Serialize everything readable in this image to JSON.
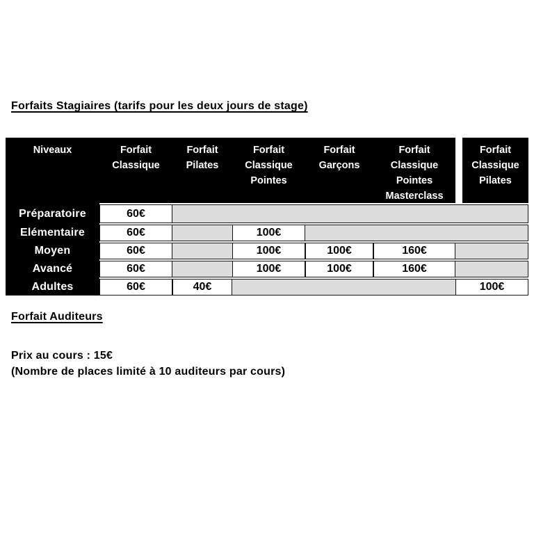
{
  "title": "Forfaits Stagiaires (tarifs pour les deux jours de stage)",
  "table": {
    "columns": [
      "Niveaux",
      "Forfait Classique",
      "Forfait Pilates",
      "Forfait Classique Pointes",
      "Forfait Garçons",
      "Forfait Classique Pointes Masterclass",
      "Forfait Classique Pilates"
    ],
    "rows": [
      {
        "level": "Préparatoire",
        "cells": [
          {
            "value": "60€",
            "state": "open"
          },
          {
            "value": "",
            "state": "na"
          },
          {
            "value": "",
            "state": "na"
          },
          {
            "value": "",
            "state": "na"
          },
          {
            "value": "",
            "state": "na"
          },
          {
            "value": "",
            "state": "na"
          }
        ]
      },
      {
        "level": "Elémentaire",
        "cells": [
          {
            "value": "60€",
            "state": "open"
          },
          {
            "value": "",
            "state": "na"
          },
          {
            "value": "100€",
            "state": "open"
          },
          {
            "value": "",
            "state": "na"
          },
          {
            "value": "",
            "state": "na"
          },
          {
            "value": "",
            "state": "na"
          }
        ]
      },
      {
        "level": "Moyen",
        "cells": [
          {
            "value": "60€",
            "state": "open"
          },
          {
            "value": "",
            "state": "na"
          },
          {
            "value": "100€",
            "state": "open"
          },
          {
            "value": "100€",
            "state": "open"
          },
          {
            "value": "160€",
            "state": "open"
          },
          {
            "value": "",
            "state": "na"
          }
        ]
      },
      {
        "level": "Avancé",
        "cells": [
          {
            "value": "60€",
            "state": "open"
          },
          {
            "value": "",
            "state": "na"
          },
          {
            "value": "100€",
            "state": "open"
          },
          {
            "value": "100€",
            "state": "open"
          },
          {
            "value": "160€",
            "state": "open"
          },
          {
            "value": "",
            "state": "na"
          }
        ]
      },
      {
        "level": "Adultes",
        "cells": [
          {
            "value": "60€",
            "state": "open"
          },
          {
            "value": "40€",
            "state": "open"
          },
          {
            "value": "",
            "state": "na"
          },
          {
            "value": "",
            "state": "na"
          },
          {
            "value": "",
            "state": "na"
          },
          {
            "value": "100€",
            "state": "open"
          }
        ]
      }
    ]
  },
  "auditeurs": {
    "heading": "Forfait Auditeurs",
    "price_line": "Prix au cours : 15€",
    "note_line": "(Nombre de places limité à 10 auditeurs par cours)"
  },
  "colors": {
    "header_bg": "#000000",
    "header_text": "#ffffff",
    "shaded_cell": "#dcdcdc",
    "open_cell": "#ffffff"
  }
}
